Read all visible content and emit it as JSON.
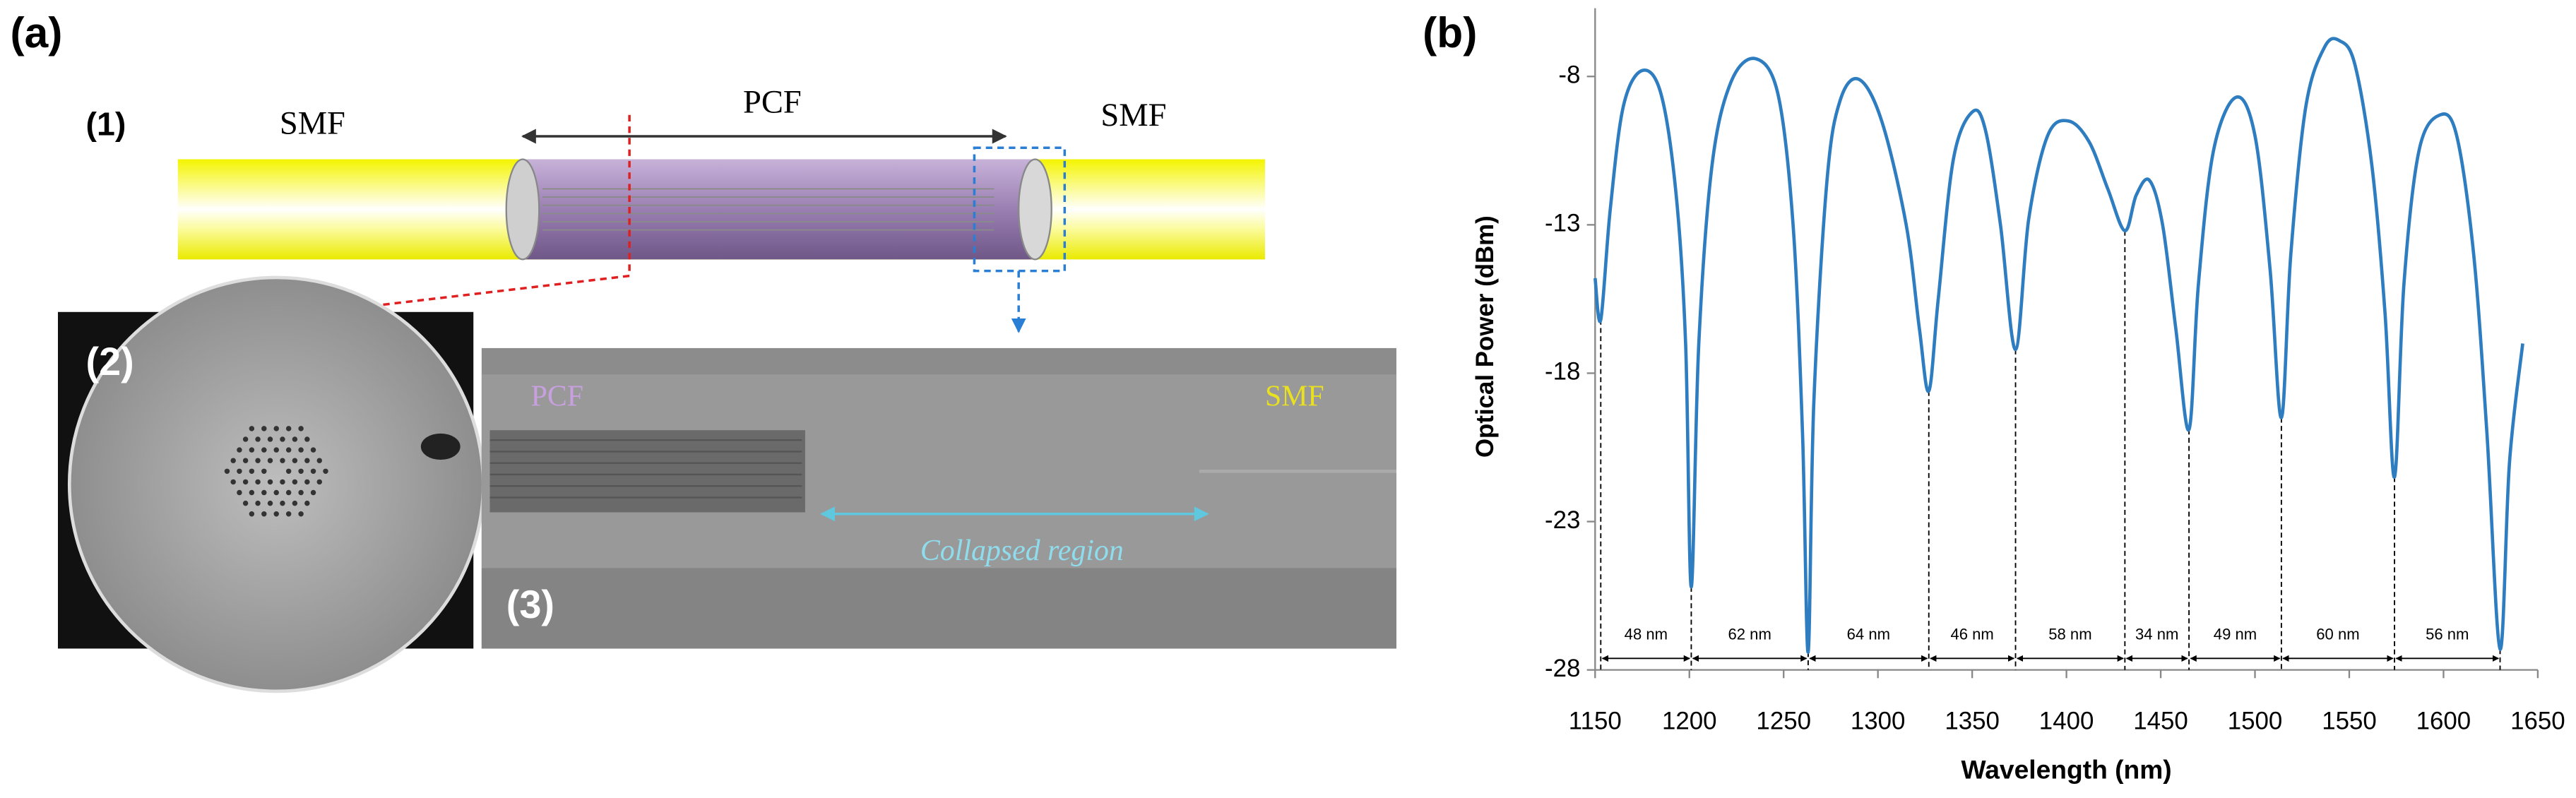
{
  "panel_a": {
    "label": "(a)",
    "diagram": {
      "label": "(1)",
      "left_fiber": "SMF",
      "middle_fiber": "PCF",
      "right_fiber": "SMF"
    },
    "cross_section": {
      "label": "(2)"
    },
    "side_view": {
      "label": "(3)",
      "left": "PCF",
      "right": "SMF",
      "region": "Collapsed region"
    }
  },
  "chart_data": {
    "type": "line",
    "panel_label": "(b)",
    "x_label": "Wavelength (nm)",
    "y_label": "Optical Power (dBm)",
    "color": "#2e7dc0",
    "x": [
      1150,
      1153,
      1158,
      1165,
      1175,
      1185,
      1193,
      1198,
      1201,
      1205,
      1212,
      1222,
      1235,
      1247,
      1255,
      1260,
      1263,
      1266,
      1273,
      1280,
      1290,
      1302,
      1315,
      1322,
      1327,
      1332,
      1340,
      1350,
      1357,
      1365,
      1373,
      1380,
      1390,
      1401,
      1412,
      1422,
      1431,
      1437,
      1444,
      1451,
      1458,
      1465,
      1470,
      1478,
      1490,
      1500,
      1508,
      1514,
      1519,
      1527,
      1537,
      1545,
      1553,
      1562,
      1569,
      1574,
      1579,
      1587,
      1598,
      1607,
      1616,
      1623,
      1630,
      1635,
      1642
    ],
    "values": [
      -14.8,
      -16.2,
      -12.5,
      -9,
      -7.8,
      -8.6,
      -12,
      -17,
      -25.2,
      -17,
      -11,
      -8.2,
      -7.4,
      -8.6,
      -13,
      -20,
      -27.4,
      -19,
      -11.5,
      -8.8,
      -8.1,
      -9.5,
      -13,
      -16.5,
      -18.6,
      -15.5,
      -10.8,
      -9.2,
      -9.8,
      -13,
      -17.2,
      -12.8,
      -10,
      -9.5,
      -10.2,
      -11.8,
      -13.2,
      -12,
      -11.5,
      -13,
      -16.5,
      -19.9,
      -15,
      -10.5,
      -8.7,
      -10,
      -14.5,
      -19.5,
      -14,
      -9,
      -7,
      -6.8,
      -7.6,
      -11,
      -16,
      -21.5,
      -15,
      -10.5,
      -9.3,
      -10,
      -14,
      -20,
      -27.3,
      -21,
      -17
    ],
    "xlim": [
      1150,
      1650
    ],
    "ylim": [
      -28,
      -5.7
    ],
    "xticks": [
      1150,
      1200,
      1250,
      1300,
      1350,
      1400,
      1450,
      1500,
      1550,
      1600,
      1650
    ],
    "yticks": [
      -28,
      -23,
      -18,
      -13,
      -8
    ],
    "dip_markers": [
      1153,
      1201,
      1263,
      1327,
      1373,
      1431,
      1465,
      1514,
      1574,
      1630
    ],
    "spacing_labels": [
      "48 nm",
      "62 nm",
      "64 nm",
      "46 nm",
      "58 nm",
      "34 nm",
      "49 nm",
      "60 nm",
      "56 nm"
    ]
  }
}
